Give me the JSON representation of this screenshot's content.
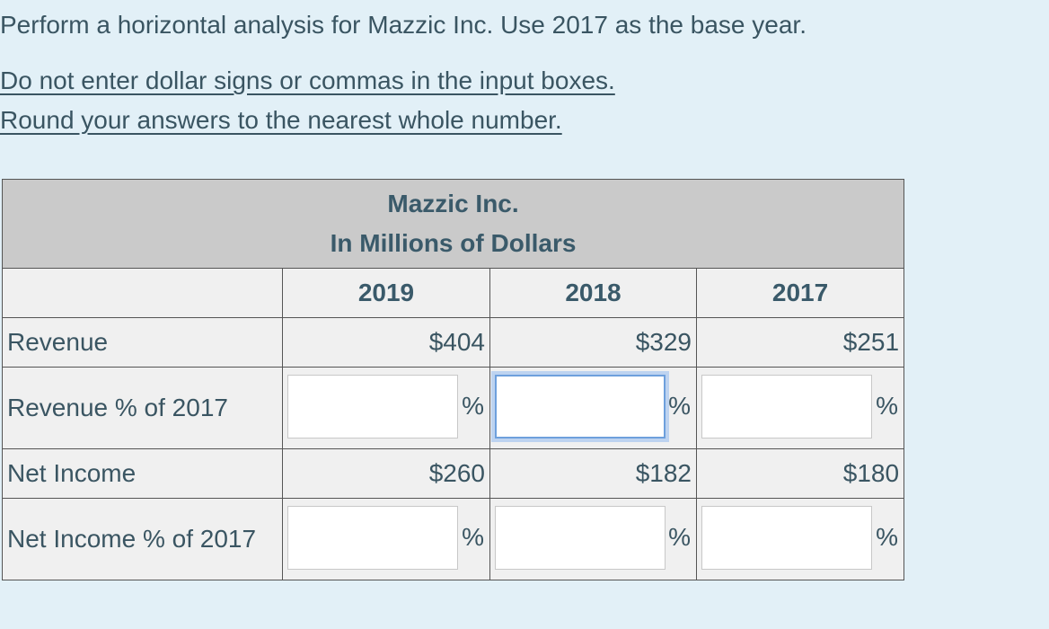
{
  "instruction": "Perform a horizontal analysis for Mazzic Inc. Use 2017 as the base year.",
  "notes": [
    "Do not enter dollar signs or commas in the input boxes.",
    "Round your answers to the nearest whole number."
  ],
  "table": {
    "company": "Mazzic Inc.",
    "units": "In Millions of Dollars",
    "years": [
      "2019",
      "2018",
      "2017"
    ],
    "rows": {
      "revenue": {
        "label": "Revenue",
        "values": [
          "$404",
          "$329",
          "$251"
        ]
      },
      "revenue_pct": {
        "label": "Revenue % of 2017",
        "inputs": [
          "",
          "",
          ""
        ],
        "suffix": "%"
      },
      "net_income": {
        "label": "Net Income",
        "values": [
          "$260",
          "$182",
          "$180"
        ]
      },
      "net_income_pct": {
        "label": "Net Income % of 2017",
        "inputs": [
          "",
          "",
          ""
        ],
        "suffix": "%"
      }
    }
  },
  "colors": {
    "background": "#e2f0f7",
    "header": "#cacaca",
    "cell": "#f0f0f0",
    "text": "#3a5562",
    "focus": "#6ea0dc"
  }
}
